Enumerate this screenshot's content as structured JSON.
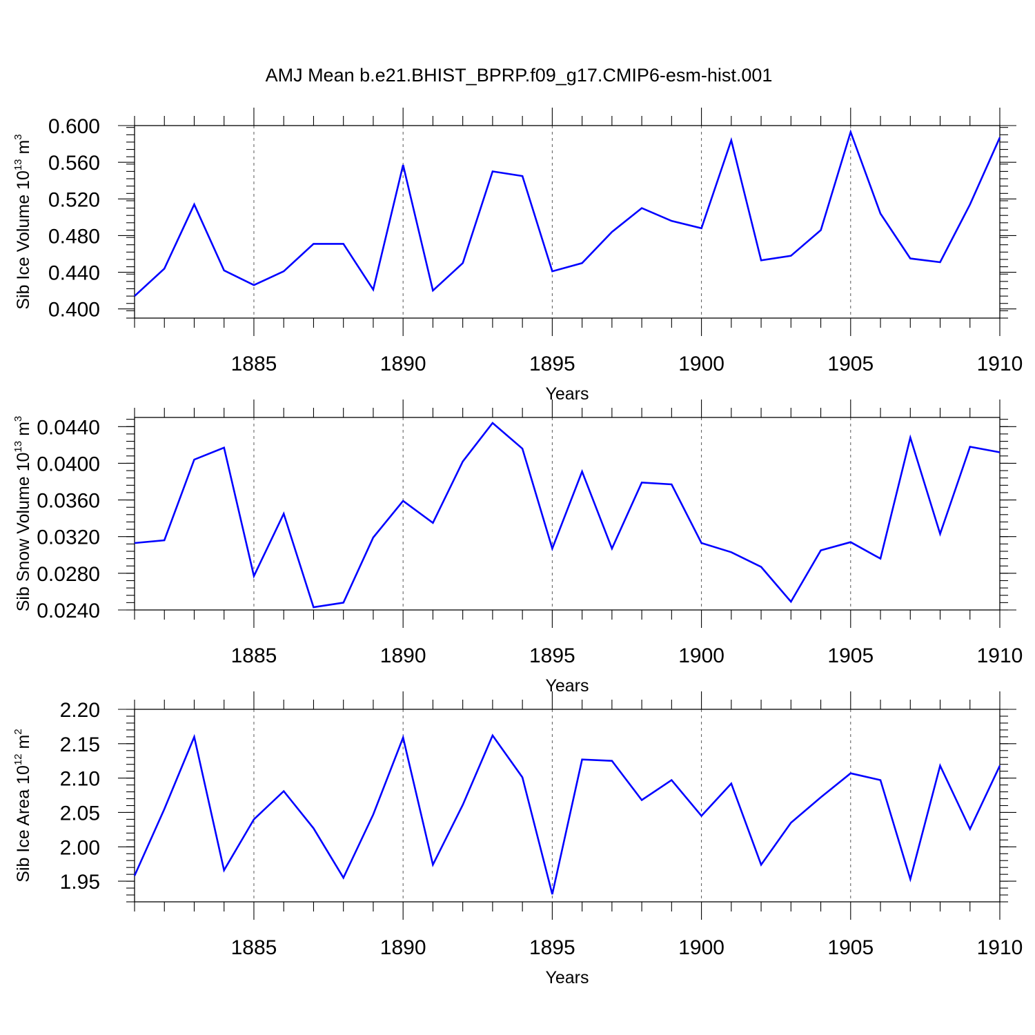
{
  "title": "AMJ Mean b.e21.BHIST_BPRP.f09_g17.CMIP6-esm-hist.001",
  "colors": {
    "series": "#0000ff",
    "axis": "#000000"
  },
  "chart_data": [
    {
      "type": "line",
      "xlabel": "Years",
      "ylabel": "Sib Ice Volume 10",
      "ylabel_exp": "13",
      "ylabel_unit": " m",
      "ylabel_unit_exp": "3",
      "xlim": [
        1881,
        1910
      ],
      "ylim": [
        0.39,
        0.6
      ],
      "grid": "vertical-dashed",
      "x_ticks": [
        1885,
        1890,
        1895,
        1900,
        1905,
        1910
      ],
      "x_tick_labels": [
        "1885",
        "1890",
        "1895",
        "1900",
        "1905",
        "1910"
      ],
      "y_ticks": [
        0.4,
        0.44,
        0.48,
        0.52,
        0.56,
        0.6
      ],
      "y_tick_labels": [
        "0.400",
        "0.440",
        "0.480",
        "0.520",
        "0.560",
        "0.600"
      ],
      "y_minor_step": 0.008,
      "x": [
        1881,
        1882,
        1883,
        1884,
        1885,
        1886,
        1887,
        1888,
        1889,
        1890,
        1891,
        1892,
        1893,
        1894,
        1895,
        1896,
        1897,
        1898,
        1899,
        1900,
        1901,
        1902,
        1903,
        1904,
        1905,
        1906,
        1907,
        1908,
        1909,
        1910
      ],
      "series": [
        {
          "values": [
            0.414,
            0.444,
            0.514,
            0.442,
            0.426,
            0.441,
            0.471,
            0.471,
            0.421,
            0.557,
            0.42,
            0.45,
            0.55,
            0.545,
            0.441,
            0.45,
            0.484,
            0.51,
            0.496,
            0.488,
            0.584,
            0.453,
            0.458,
            0.486,
            0.593,
            0.504,
            0.455,
            0.451,
            0.514,
            0.587
          ]
        }
      ]
    },
    {
      "type": "line",
      "xlabel": "Years",
      "ylabel": "Sib Snow Volume 10",
      "ylabel_exp": "13",
      "ylabel_unit": " m",
      "ylabel_unit_exp": "3",
      "xlim": [
        1881,
        1910
      ],
      "ylim": [
        0.024,
        0.045
      ],
      "grid": "vertical-dashed",
      "x_ticks": [
        1885,
        1890,
        1895,
        1900,
        1905,
        1910
      ],
      "x_tick_labels": [
        "1885",
        "1890",
        "1895",
        "1900",
        "1905",
        "1910"
      ],
      "y_ticks": [
        0.024,
        0.028,
        0.032,
        0.036,
        0.04,
        0.044
      ],
      "y_tick_labels": [
        "0.0240",
        "0.0280",
        "0.0320",
        "0.0360",
        "0.0400",
        "0.0440"
      ],
      "y_minor_step": 0.0008,
      "x": [
        1881,
        1882,
        1883,
        1884,
        1885,
        1886,
        1887,
        1888,
        1889,
        1890,
        1891,
        1892,
        1893,
        1894,
        1895,
        1896,
        1897,
        1898,
        1899,
        1900,
        1901,
        1902,
        1903,
        1904,
        1905,
        1906,
        1907,
        1908,
        1909,
        1910
      ],
      "series": [
        {
          "values": [
            0.0313,
            0.0316,
            0.0404,
            0.0417,
            0.0277,
            0.0345,
            0.0243,
            0.0248,
            0.0319,
            0.0359,
            0.0335,
            0.0402,
            0.0444,
            0.0416,
            0.0307,
            0.0391,
            0.0307,
            0.0379,
            0.0377,
            0.0313,
            0.0303,
            0.0287,
            0.0249,
            0.0305,
            0.0314,
            0.0296,
            0.0428,
            0.0323,
            0.0418,
            0.0412
          ]
        }
      ]
    },
    {
      "type": "line",
      "xlabel": "Years",
      "ylabel": "Sib Ice Area 10",
      "ylabel_exp": "12",
      "ylabel_unit": " m",
      "ylabel_unit_exp": "2",
      "xlim": [
        1881,
        1910
      ],
      "ylim": [
        1.92,
        2.2
      ],
      "grid": "vertical-dashed",
      "x_ticks": [
        1885,
        1890,
        1895,
        1900,
        1905,
        1910
      ],
      "x_tick_labels": [
        "1885",
        "1890",
        "1895",
        "1900",
        "1905",
        "1910"
      ],
      "y_ticks": [
        1.95,
        2.0,
        2.05,
        2.1,
        2.15,
        2.2
      ],
      "y_tick_labels": [
        "1.95",
        "2.00",
        "2.05",
        "2.10",
        "2.15",
        "2.20"
      ],
      "y_minor_step": 0.01,
      "x": [
        1881,
        1882,
        1883,
        1884,
        1885,
        1886,
        1887,
        1888,
        1889,
        1890,
        1891,
        1892,
        1893,
        1894,
        1895,
        1896,
        1897,
        1898,
        1899,
        1900,
        1901,
        1902,
        1903,
        1904,
        1905,
        1906,
        1907,
        1908,
        1909,
        1910
      ],
      "series": [
        {
          "values": [
            1.958,
            2.055,
            2.16,
            1.966,
            2.04,
            2.081,
            2.027,
            1.955,
            2.047,
            2.159,
            1.974,
            2.061,
            2.162,
            2.101,
            1.931,
            2.127,
            2.125,
            2.068,
            2.097,
            2.045,
            2.092,
            1.974,
            2.035,
            2.072,
            2.107,
            2.097,
            1.953,
            2.118,
            2.026,
            2.118
          ]
        }
      ]
    }
  ]
}
